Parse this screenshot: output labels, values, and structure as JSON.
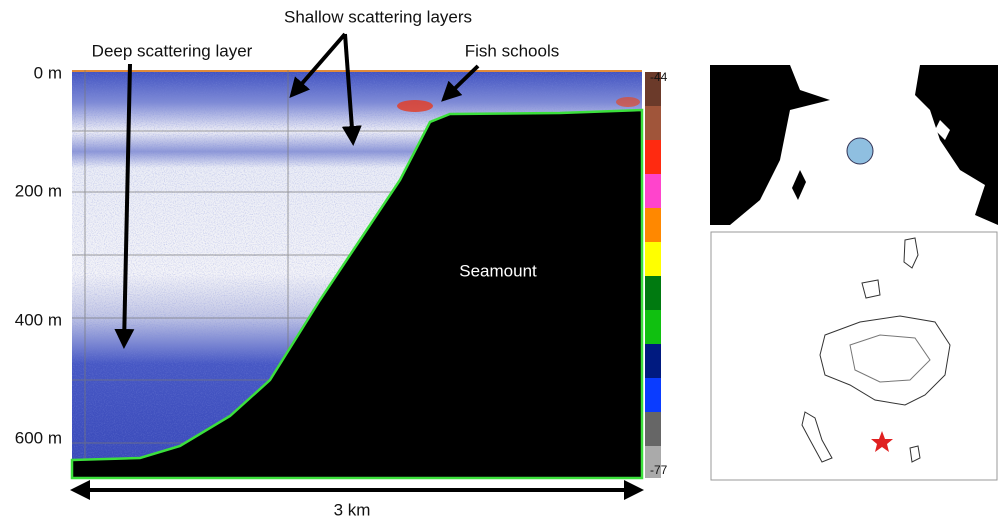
{
  "labels": {
    "shallow": "Shallow scattering layers",
    "deep": "Deep scattering layer",
    "fish": "Fish schools",
    "seamount": "Seamount",
    "scale": "3 km"
  },
  "depth_ticks": [
    "0 m",
    "200 m",
    "400 m",
    "600 m"
  ],
  "colorbar": {
    "top": "-44",
    "bottom": "-77"
  }
}
